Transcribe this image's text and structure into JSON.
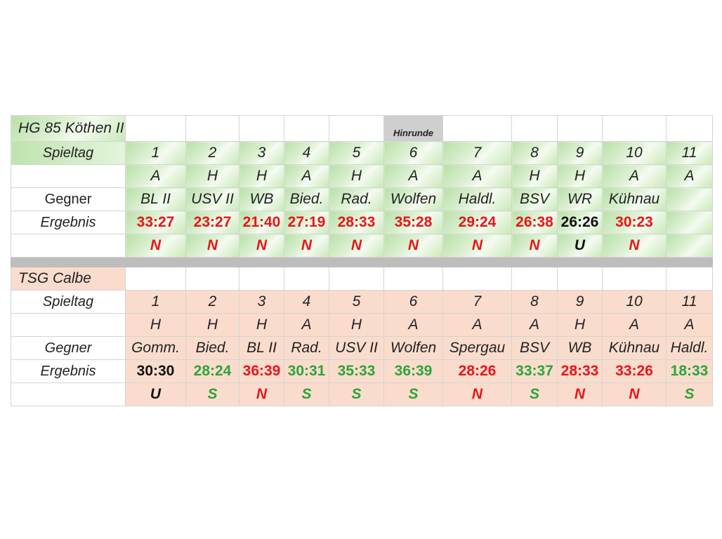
{
  "hinrunde_label": "Hinrunde",
  "colors": {
    "win": "#2aa53a",
    "loss": "#e8151b",
    "draw": "#111111"
  },
  "team1": {
    "name": "HG 85 Köthen II",
    "labels": {
      "spieltag": "Spieltag",
      "gegner": "Gegner",
      "ergebnis": "Ergebnis"
    },
    "spieltag": [
      "1",
      "2",
      "3",
      "4",
      "5",
      "6",
      "7",
      "8",
      "9",
      "10",
      "11"
    ],
    "venue": [
      "A",
      "H",
      "H",
      "A",
      "H",
      "A",
      "A",
      "H",
      "H",
      "A",
      "A"
    ],
    "gegner": [
      "BL II",
      "USV II",
      "WB",
      "Bied.",
      "Rad.",
      "Wolfen",
      "Haldl.",
      "BSV",
      "WR",
      "Kühnau",
      ""
    ],
    "ergebnis": [
      "33:27",
      "23:27",
      "21:40",
      "27:19",
      "28:33",
      "35:28",
      "29:24",
      "26:38",
      "26:26",
      "30:23",
      ""
    ],
    "outcome": [
      "N",
      "N",
      "N",
      "N",
      "N",
      "N",
      "N",
      "N",
      "U",
      "N",
      ""
    ]
  },
  "team2": {
    "name": "TSG Calbe",
    "labels": {
      "spieltag": "Spieltag",
      "gegner": "Gegner",
      "ergebnis": "Ergebnis"
    },
    "spieltag": [
      "1",
      "2",
      "3",
      "4",
      "5",
      "6",
      "7",
      "8",
      "9",
      "10",
      "11"
    ],
    "venue": [
      "H",
      "H",
      "H",
      "A",
      "H",
      "A",
      "A",
      "A",
      "H",
      "A",
      "A"
    ],
    "gegner": [
      "Gomm.",
      "Bied.",
      "BL II",
      "Rad.",
      "USV II",
      "Wolfen",
      "Spergau",
      "BSV",
      "WB",
      "Kühnau",
      "Haldl."
    ],
    "ergebnis": [
      "30:30",
      "28:24",
      "36:39",
      "30:31",
      "35:33",
      "36:39",
      "28:26",
      "33:37",
      "28:33",
      "33:26",
      "18:33"
    ],
    "outcome": [
      "U",
      "S",
      "N",
      "S",
      "S",
      "S",
      "N",
      "S",
      "N",
      "N",
      "S"
    ]
  }
}
